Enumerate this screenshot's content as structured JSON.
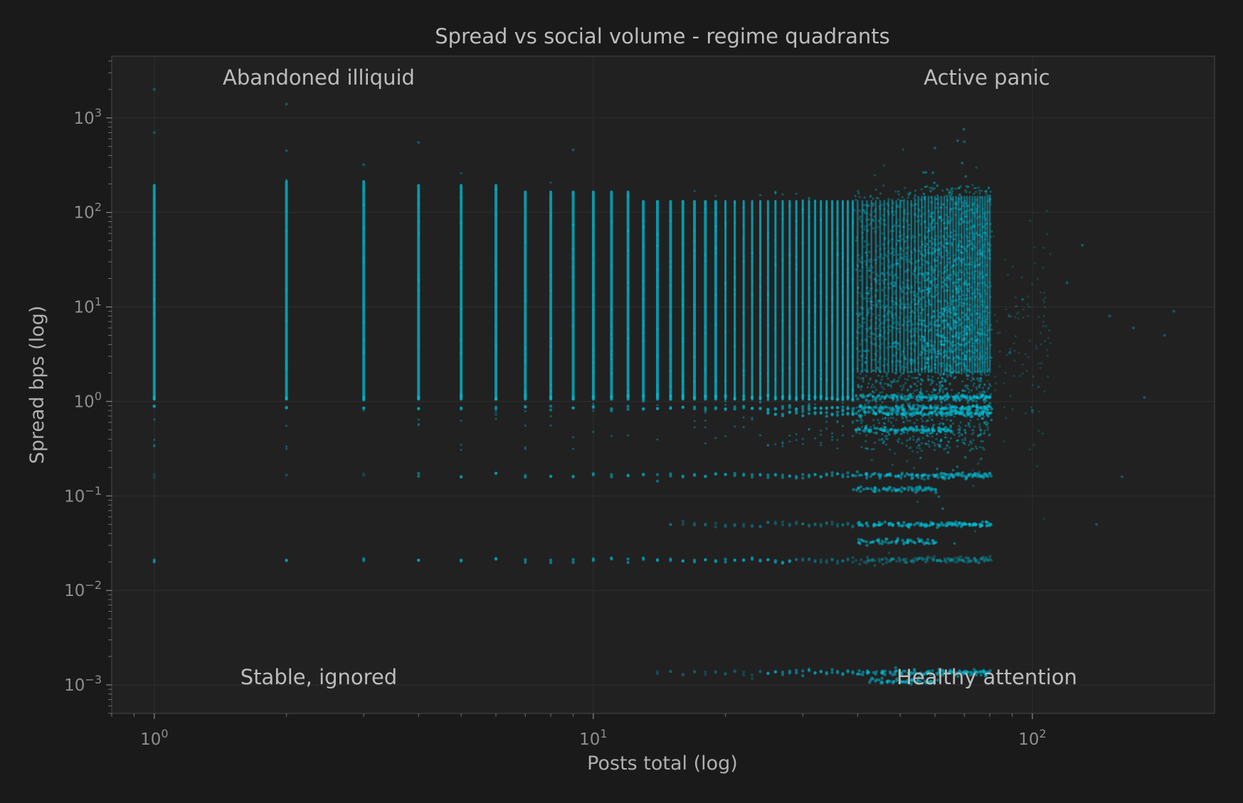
{
  "chart_data": {
    "type": "scatter",
    "title": "Spread vs social volume - regime quadrants",
    "xlabel": "Posts total (log)",
    "ylabel": "Spread bps (log)",
    "xscale": "log",
    "yscale": "log",
    "xlim": [
      0.8,
      260
    ],
    "ylim": [
      0.0005,
      4500
    ],
    "grid": true,
    "x_ticks": [
      {
        "value": 1,
        "base": "10",
        "exp": "0"
      },
      {
        "value": 10,
        "base": "10",
        "exp": "1"
      },
      {
        "value": 100,
        "base": "10",
        "exp": "2"
      }
    ],
    "y_ticks": [
      {
        "value": 0.001,
        "base": "10",
        "exp": "−3"
      },
      {
        "value": 0.01,
        "base": "10",
        "exp": "−2"
      },
      {
        "value": 0.1,
        "base": "10",
        "exp": "−1"
      },
      {
        "value": 1,
        "base": "10",
        "exp": "0"
      },
      {
        "value": 10,
        "base": "10",
        "exp": "1"
      },
      {
        "value": 100,
        "base": "10",
        "exp": "2"
      },
      {
        "value": 1000,
        "base": "10",
        "exp": "3"
      }
    ],
    "quadrant_labels": {
      "top_left": "Abandoned illiquid",
      "top_right": "Active panic",
      "bottom_left": "Stable, ignored",
      "bottom_right": "Healthy attention"
    },
    "series": [
      {
        "color": "#00bcd4",
        "marker": "point",
        "alpha": 0.25,
        "columns": [
          1,
          2,
          3,
          4,
          5,
          6,
          7,
          8,
          9,
          10,
          11,
          12,
          13,
          14,
          15,
          16,
          17,
          18,
          19,
          20,
          21,
          22,
          23,
          24,
          25,
          26,
          27,
          28,
          29,
          30,
          31,
          32,
          33,
          34,
          35,
          36,
          37,
          38,
          39,
          40,
          41,
          42,
          43,
          44,
          45,
          46,
          47,
          48,
          49,
          50,
          51,
          52,
          53,
          54,
          55,
          56,
          57,
          58,
          59,
          60,
          61,
          62,
          63,
          64,
          65,
          66,
          67,
          68,
          69,
          70,
          71,
          72,
          73,
          74,
          75,
          76,
          77,
          78,
          79,
          80
        ],
        "dense_band_y": [
          0.85,
          200
        ],
        "horizontal_bands_y": [
          0.021,
          0.033,
          0.05,
          0.118,
          0.165,
          0.5,
          0.75,
          1.1,
          0.00135,
          0.0011
        ],
        "outliers": [
          {
            "x": 1,
            "y": 700
          },
          {
            "x": 1,
            "y": 2000
          },
          {
            "x": 2,
            "y": 1400
          },
          {
            "x": 2,
            "y": 450
          },
          {
            "x": 3,
            "y": 320
          },
          {
            "x": 4,
            "y": 550
          },
          {
            "x": 9,
            "y": 460
          },
          {
            "x": 60,
            "y": 480
          },
          {
            "x": 70,
            "y": 560
          },
          {
            "x": 95,
            "y": 12
          },
          {
            "x": 120,
            "y": 18
          },
          {
            "x": 130,
            "y": 45
          },
          {
            "x": 150,
            "y": 8
          },
          {
            "x": 170,
            "y": 6
          },
          {
            "x": 180,
            "y": 1.1
          },
          {
            "x": 200,
            "y": 5
          },
          {
            "x": 210,
            "y": 9
          },
          {
            "x": 160,
            "y": 0.16
          },
          {
            "x": 140,
            "y": 0.05
          },
          {
            "x": 100,
            "y": 0.8
          }
        ]
      }
    ]
  }
}
